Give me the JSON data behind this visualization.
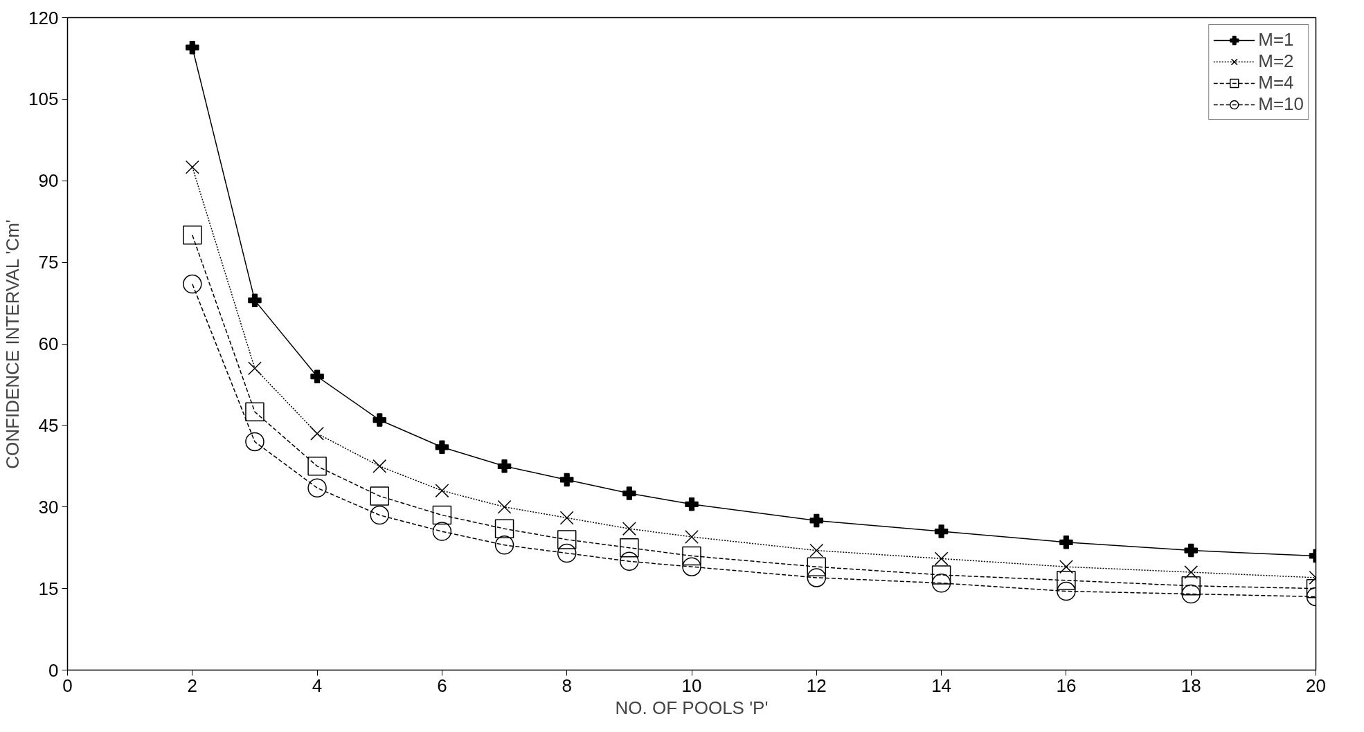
{
  "chart_data": {
    "type": "line",
    "xlabel": "NO. OF POOLS 'P'",
    "ylabel": "CONFIDENCE INTERVAL 'Cm'",
    "x": [
      2,
      3,
      4,
      5,
      6,
      7,
      8,
      9,
      10,
      12,
      14,
      16,
      18,
      20
    ],
    "series": [
      {
        "name": "M=1",
        "color": "#000000",
        "marker": "cross",
        "line_style": "solid",
        "values": [
          114.5,
          68,
          54,
          46,
          41,
          37.5,
          35,
          32.5,
          30.5,
          27.5,
          25.5,
          23.5,
          22,
          21
        ]
      },
      {
        "name": "M=2",
        "color": "#000000",
        "marker": "x",
        "line_style": "dotted",
        "values": [
          92.5,
          55.5,
          43.5,
          37.5,
          33,
          30,
          28,
          26,
          24.5,
          22,
          20.5,
          19,
          18,
          17
        ]
      },
      {
        "name": "M=4",
        "color": "#000000",
        "marker": "square",
        "line_style": "dashed",
        "values": [
          80,
          47.5,
          37.5,
          32,
          28.5,
          26,
          24,
          22.5,
          21,
          19,
          17.5,
          16.5,
          15.5,
          15
        ]
      },
      {
        "name": "M=10",
        "color": "#000000",
        "marker": "circle",
        "line_style": "dashed",
        "values": [
          71,
          42,
          33.5,
          28.5,
          25.5,
          23,
          21.5,
          20,
          19,
          17,
          16,
          14.5,
          14,
          13.5
        ]
      }
    ],
    "xlim": [
      0,
      20
    ],
    "xticks": [
      0,
      2,
      4,
      6,
      8,
      10,
      12,
      14,
      16,
      18,
      20
    ],
    "ylim": [
      0,
      120
    ],
    "yticks": [
      0,
      15,
      30,
      45,
      60,
      75,
      90,
      105,
      120
    ],
    "grid": false,
    "legend": "top right"
  }
}
